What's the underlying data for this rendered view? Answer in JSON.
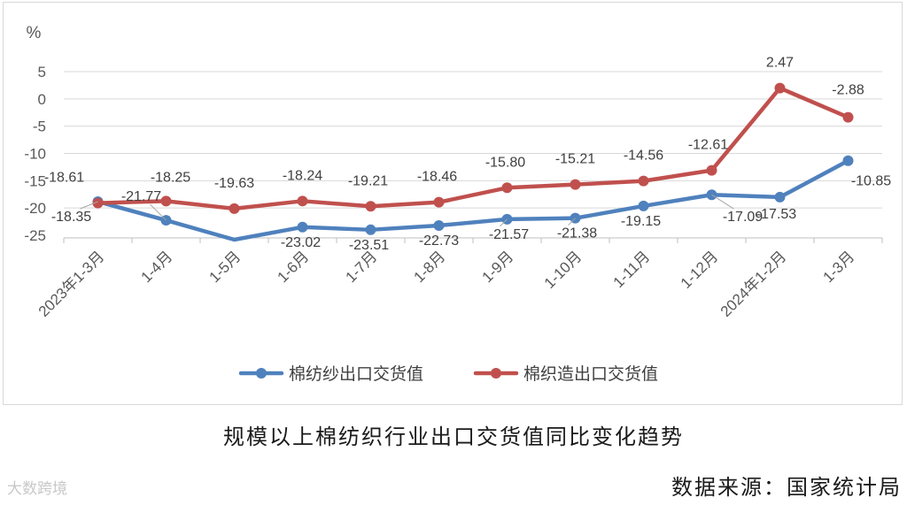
{
  "chart_data": {
    "type": "line",
    "ylabel": "%",
    "ylim": [
      -25,
      5
    ],
    "yticks": [
      5,
      0,
      -5,
      -10,
      -15,
      -20,
      -25
    ],
    "categories": [
      "2023年1-3月",
      "1-4月",
      "1-5月",
      "1-6月",
      "1-7月",
      "1-8月",
      "1-9月",
      "1-10月",
      "1-11月",
      "1-12月",
      "2024年1-2月",
      "1-3月"
    ],
    "series": [
      {
        "name": "棉纺纱出口交货值",
        "color": "#4f81bd",
        "values": [
          -18.35,
          -21.77,
          -25.8,
          -23.02,
          -23.51,
          -22.73,
          -21.57,
          -21.38,
          -19.15,
          -17.09,
          -17.53,
          -10.85
        ],
        "labels": [
          "-18.35",
          "-21.77",
          "",
          "-23.02",
          "-23.51",
          "-22.73",
          "-21.57",
          "-21.38",
          "-19.15",
          "-17.09",
          "-17.53",
          "-10.85"
        ]
      },
      {
        "name": "棉织造出口交货值",
        "color": "#c0504d",
        "values": [
          -18.61,
          -18.25,
          -19.63,
          -18.24,
          -19.21,
          -18.46,
          -15.8,
          -15.21,
          -14.56,
          -12.61,
          2.47,
          -2.88
        ],
        "labels": [
          "-18.61",
          "-18.25",
          "-19.63",
          "-18.24",
          "-19.21",
          "-18.46",
          "-15.80",
          "-15.21",
          "-14.56",
          "-12.61",
          "2.47",
          "-2.88"
        ]
      }
    ],
    "legend": "bottom",
    "grid": true
  },
  "caption": "规模以上棉纺织行业出口交货值同比变化趋势",
  "source": "数据来源：国家统计局",
  "watermark": "大数跨境"
}
